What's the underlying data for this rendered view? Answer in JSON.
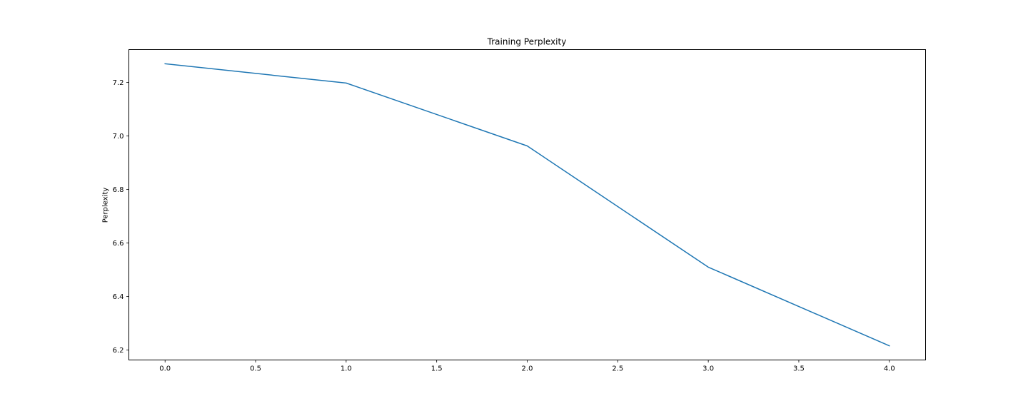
{
  "chart_data": {
    "type": "line",
    "title": "Training Perplexity",
    "xlabel": "",
    "ylabel": "Perplexity",
    "x": [
      0,
      1,
      2,
      3,
      4
    ],
    "series": [
      {
        "values": [
          7.27,
          7.198,
          6.963,
          6.51,
          6.216
        ],
        "color": "#1f77b4"
      }
    ],
    "xlim": [
      -0.2,
      4.2
    ],
    "ylim": [
      6.163,
      7.323
    ],
    "xticks": [
      0.0,
      0.5,
      1.0,
      1.5,
      2.0,
      2.5,
      3.0,
      3.5,
      4.0
    ],
    "xtick_labels": [
      "0.0",
      "0.5",
      "1.0",
      "1.5",
      "2.0",
      "2.5",
      "3.0",
      "3.5",
      "4.0"
    ],
    "yticks": [
      6.2,
      6.4,
      6.6,
      6.8,
      7.0,
      7.2
    ],
    "ytick_labels": [
      "6.2",
      "6.4",
      "6.6",
      "6.8",
      "7.0",
      "7.2"
    ],
    "grid": false
  }
}
